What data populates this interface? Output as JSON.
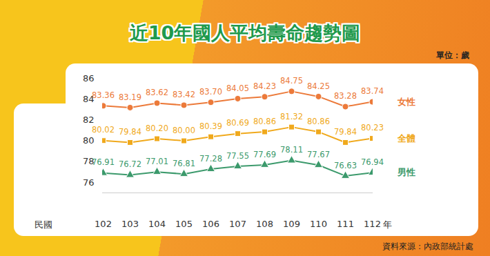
{
  "chart_data": {
    "type": "line",
    "title": "近10年國人平均壽命趨勢圖",
    "ylabel": "單位：歲",
    "xlabel": "民國",
    "annotations": [
      "年"
    ],
    "source": "資料來源：內政部統計處",
    "categories": [
      "102",
      "103",
      "104",
      "105",
      "106",
      "107",
      "108",
      "109",
      "110",
      "111",
      "112"
    ],
    "ylim": [
      75,
      86
    ],
    "yticks": [
      76,
      78,
      80,
      82,
      84,
      86
    ],
    "grid": false,
    "data_labels": true,
    "series": [
      {
        "name": "女性",
        "color": "#ec7a3a",
        "marker": "circle",
        "values": [
          83.36,
          83.19,
          83.62,
          83.42,
          83.7,
          84.05,
          84.23,
          84.75,
          84.25,
          83.28,
          83.74
        ],
        "value_labels": [
          "83.36",
          "83.19",
          "83.62",
          "83.42",
          "83.70",
          "84.05",
          "84.23",
          "84.75",
          "84.25",
          "83.28",
          "83.74"
        ]
      },
      {
        "name": "全體",
        "color": "#f0a91c",
        "marker": "square",
        "values": [
          80.02,
          79.84,
          80.2,
          80.0,
          80.39,
          80.69,
          80.86,
          81.32,
          80.86,
          79.84,
          80.23
        ],
        "value_labels": [
          "80.02",
          "79.84",
          "80.20",
          "80.00",
          "80.39",
          "80.69",
          "80.86",
          "81.32",
          "80.86",
          "79.84",
          "80.23"
        ]
      },
      {
        "name": "男性",
        "color": "#3c9a6c",
        "marker": "triangle",
        "values": [
          76.91,
          76.72,
          77.01,
          76.81,
          77.28,
          77.55,
          77.69,
          78.11,
          77.67,
          76.63,
          76.94
        ],
        "value_labels": [
          "76.91",
          "76.72",
          "77.01",
          "76.81",
          "77.28",
          "77.55",
          "77.69",
          "78.11",
          "77.67",
          "76.63",
          "76.94"
        ]
      }
    ]
  }
}
